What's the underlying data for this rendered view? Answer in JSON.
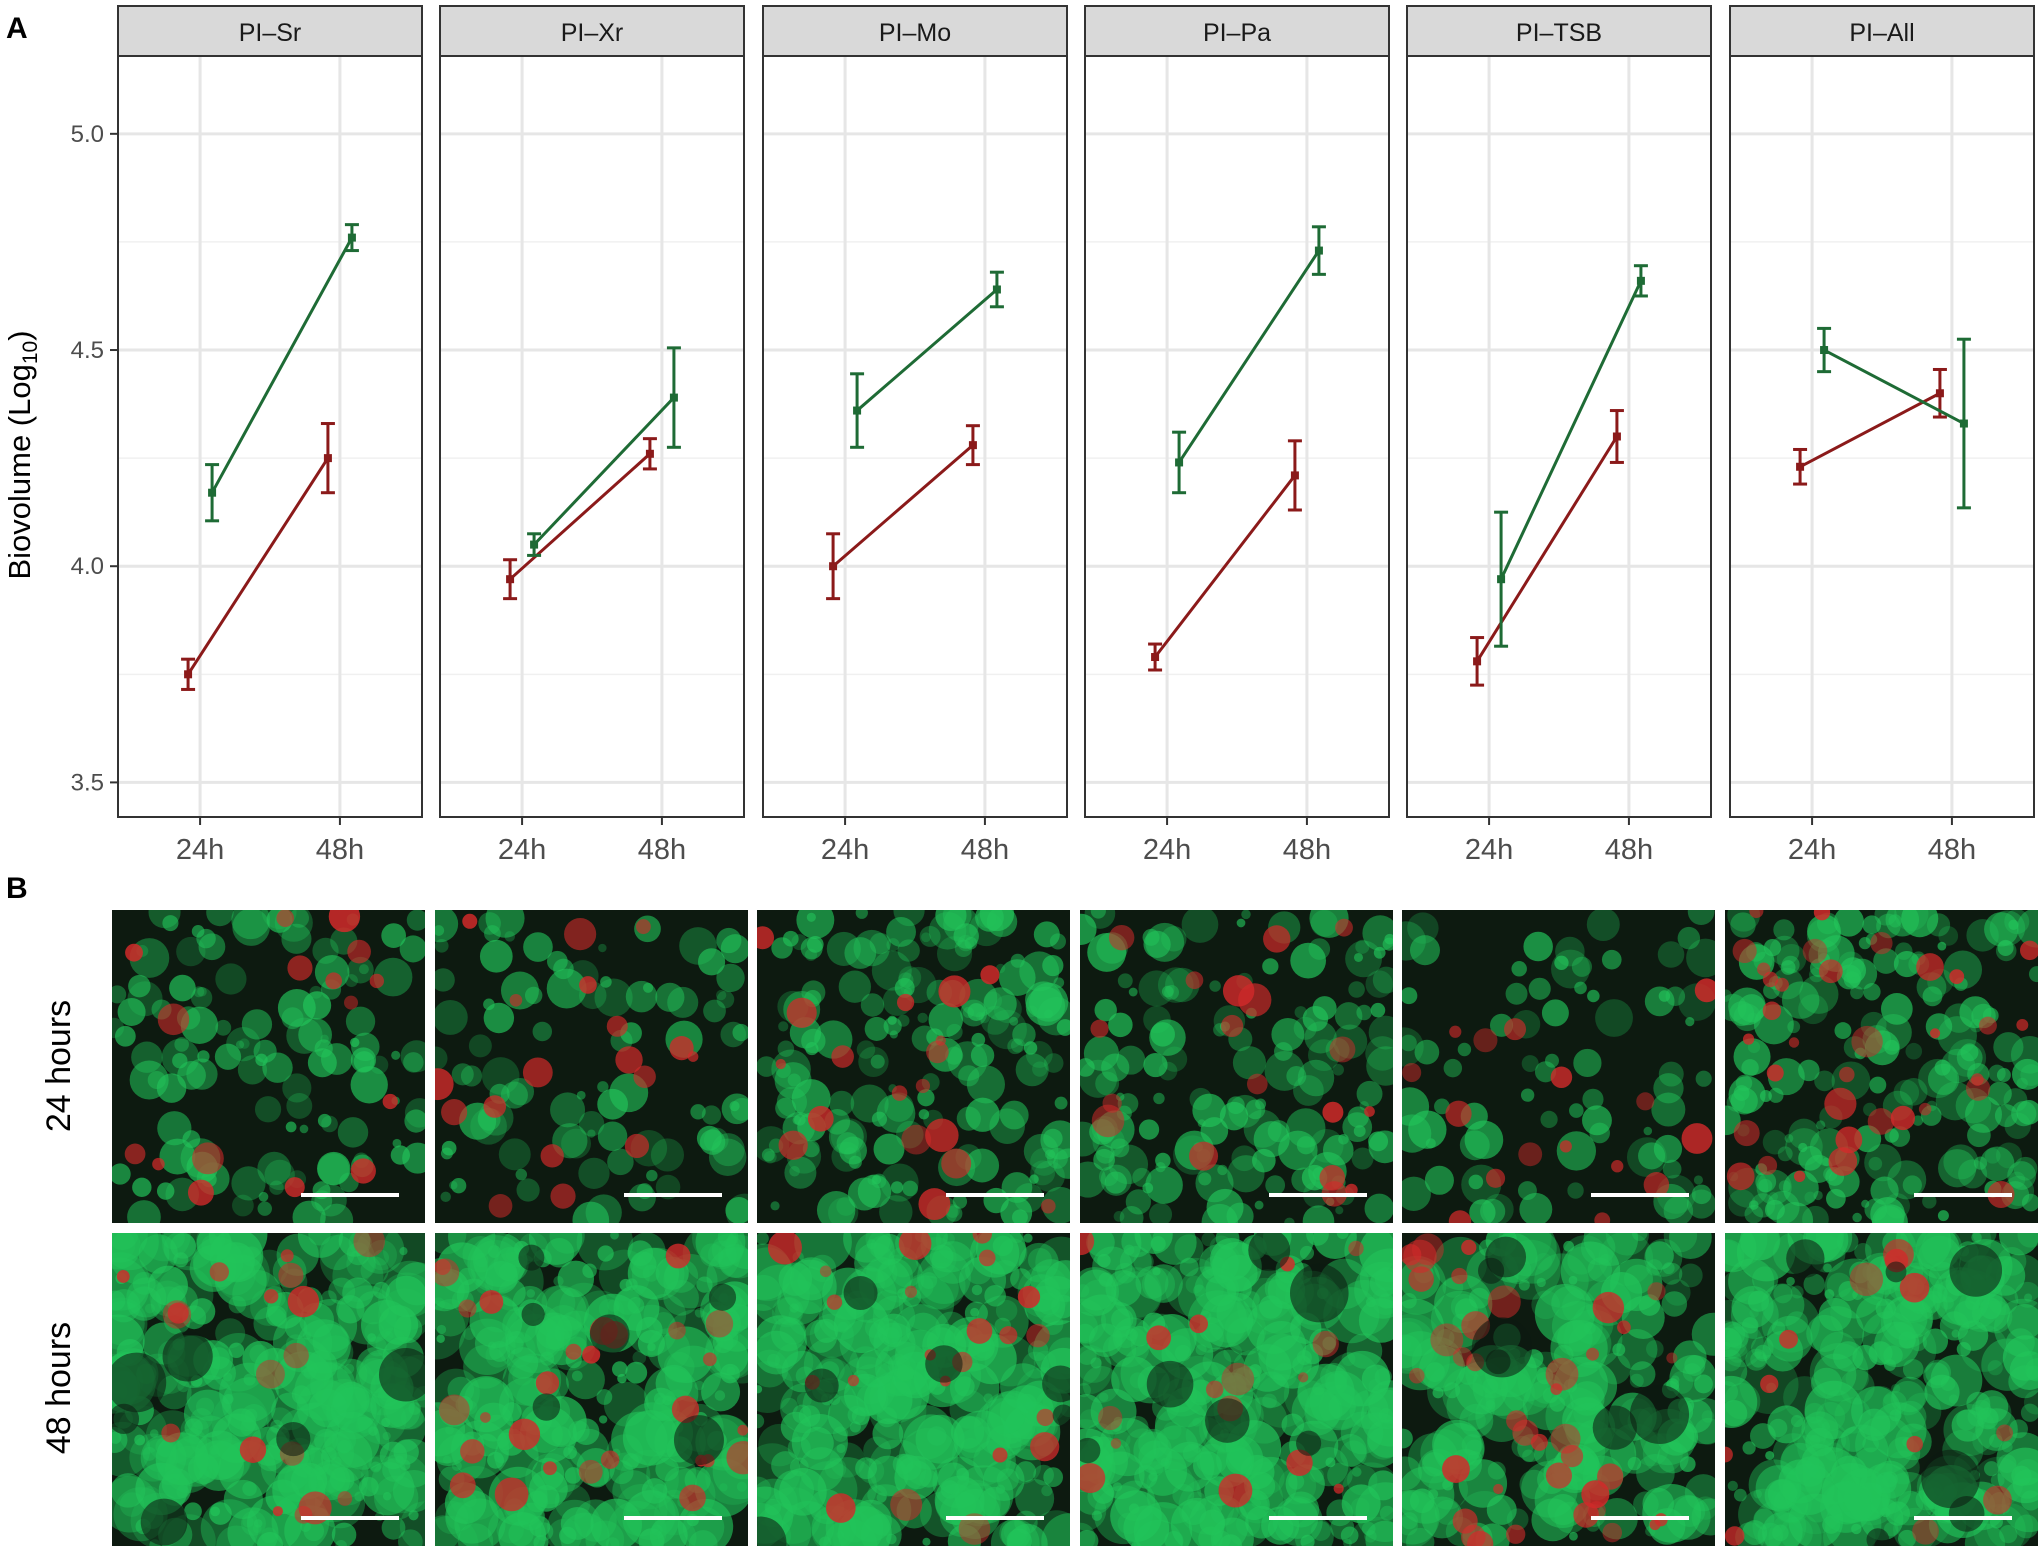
{
  "panel_a_letter": "A",
  "panel_b_letter": "B",
  "chart_data": {
    "type": "line",
    "facets": [
      "PI–Sr",
      "PI–Xr",
      "PI–Mo",
      "PI–Pa",
      "PI–TSB",
      "PI–All"
    ],
    "categories": [
      "24h",
      "48h"
    ],
    "ylabel": "Biovolume (Log",
    "ylabel_sub": "10",
    "ylabel_close": ")",
    "ylim": [
      3.42,
      5.18
    ],
    "yticks": [
      3.5,
      4.0,
      4.5,
      5.0
    ],
    "ytick_labels": [
      "3.5",
      "4.0",
      "4.5",
      "5.0"
    ],
    "grid": true,
    "colors": {
      "red_series": "#8b1a1a",
      "green_series": "#1e6b35"
    },
    "series": [
      {
        "color_key": "red_series",
        "values": [
          [
            3.75,
            4.25
          ],
          [
            3.97,
            4.26
          ],
          [
            4.0,
            4.28
          ],
          [
            3.79,
            4.21
          ],
          [
            3.78,
            4.3
          ],
          [
            4.23,
            4.4
          ]
        ],
        "errors": [
          [
            0.035,
            0.08
          ],
          [
            0.045,
            0.035
          ],
          [
            0.075,
            0.045
          ],
          [
            0.03,
            0.08
          ],
          [
            0.055,
            0.06
          ],
          [
            0.04,
            0.055
          ]
        ]
      },
      {
        "color_key": "green_series",
        "values": [
          [
            4.17,
            4.76
          ],
          [
            4.05,
            4.39
          ],
          [
            4.36,
            4.64
          ],
          [
            4.24,
            4.73
          ],
          [
            3.97,
            4.66
          ],
          [
            4.5,
            4.33
          ]
        ],
        "errors": [
          [
            0.065,
            0.03
          ],
          [
            0.025,
            0.115
          ],
          [
            0.085,
            0.04
          ],
          [
            0.07,
            0.055
          ],
          [
            0.155,
            0.035
          ],
          [
            0.05,
            0.195
          ]
        ]
      }
    ]
  },
  "micrographs": {
    "row_labels": [
      "24 hours",
      "48 hours"
    ],
    "colors": {
      "background": "#0d1a10",
      "green_stain": "#22c45a",
      "red_stain": "#d22a2a",
      "scale_bar": "#ffffff"
    },
    "green_coverage": [
      [
        0.3,
        0.2,
        0.5,
        0.4,
        0.15,
        0.55
      ],
      [
        0.9,
        0.8,
        0.85,
        0.9,
        0.6,
        0.9
      ]
    ],
    "red_density": [
      [
        0.25,
        0.3,
        0.3,
        0.3,
        0.25,
        0.7
      ],
      [
        0.3,
        0.55,
        0.4,
        0.25,
        0.8,
        0.15
      ]
    ]
  }
}
